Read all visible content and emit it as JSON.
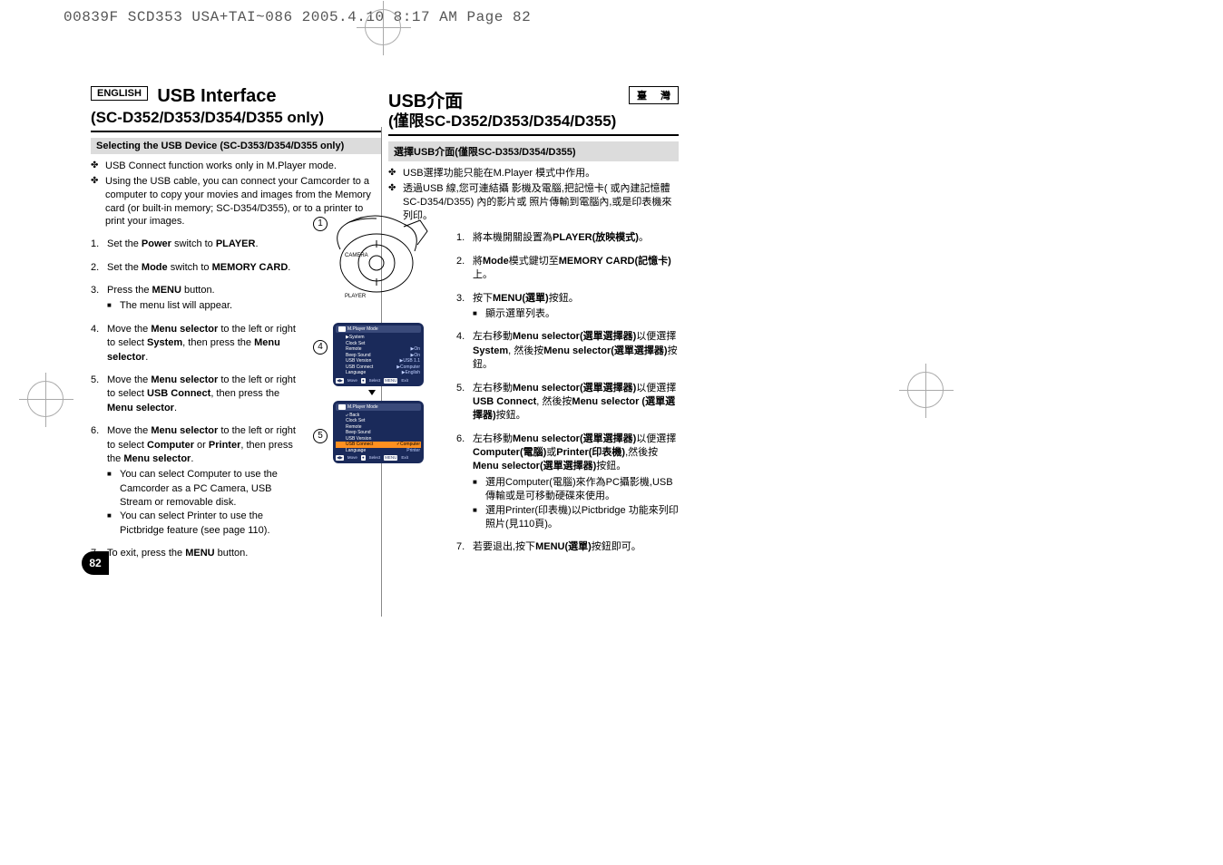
{
  "header_stamp": "00839F SCD353 USA+TAI~086  2005.4.10 8:17 AM  Page 82",
  "page_number": "82",
  "left": {
    "lang_badge": "ENGLISH",
    "title": "USB Interface",
    "subtitle": "(SC-D352/D353/D354/D355 only)",
    "section": "Selecting the USB Device (SC-D353/D354/D355 only)",
    "bullets": [
      "USB Connect function works only in M.Player mode.",
      "Using the USB cable, you can connect your Camcorder to a computer to copy your movies and images from the Memory card (or built-in memory; SC-D354/D355), or to a printer to print your images."
    ],
    "steps": [
      {
        "text": "Set the <b>Power</b> switch to <b>PLAYER</b>."
      },
      {
        "text": "Set the <b>Mode</b> switch to <b>MEMORY CARD</b>."
      },
      {
        "text": "Press the <b>MENU</b> button.",
        "sub": [
          "The menu list will appear."
        ]
      },
      {
        "text": "Move the <b>Menu selector</b> to the left or right to select <b>System</b>, then press the <b>Menu selector</b>."
      },
      {
        "text": "Move the <b>Menu selector</b> to the left or right to select <b>USB Connect</b>, then press the <b>Menu selector</b>."
      },
      {
        "text": "Move the <b>Menu selector</b> to the left or right to select <b>Computer</b> or <b>Printer</b>, then press the <b>Menu selector</b>.",
        "sub": [
          "You can select Computer to use the Camcorder as a PC Camera, USB Stream or removable disk.",
          "You can select Printer to use the Pictbridge feature  (see page 110)."
        ]
      },
      {
        "text": "To exit, press the <b>MENU</b> button."
      }
    ]
  },
  "right": {
    "lang_badge": "臺 灣",
    "title": "USB介面",
    "subtitle": "(僅限SC-D352/D353/D354/D355)",
    "section": "選擇USB介面(僅限SC-D353/D354/D355)",
    "bullets": [
      "USB選擇功能只能在M.Player 模式中作用。",
      "透過USB 線,您可連結攝 影機及電腦,把記憶卡( 或內建記憶體 SC-D354/D355) 內的影片或 照片傳輸到電腦內,或是印表機來列印。"
    ],
    "steps": [
      {
        "text": "將本機開關設置為<b>PLAYER(放映模式)</b>。"
      },
      {
        "text": "將<b>Mode</b>模式鍵切至<b>MEMORY CARD(記憶卡)</b>上。"
      },
      {
        "text": "按下<b>MENU(選單)</b>按鈕。",
        "sub": [
          "顯示選單列表。"
        ]
      },
      {
        "text": "左右移動<b>Menu selector(選單選擇器)</b>以便選擇 <b>System</b>, 然後按<b>Menu selector(選單選擇器)</b>按鈕。"
      },
      {
        "text": "左右移動<b>Menu selector(選單選擇器)</b>以便選擇 <b>USB Connect</b>, 然後按<b>Menu selector (選單選擇器)</b>按鈕。"
      },
      {
        "text": "左右移動<b>Menu selector(選單選擇器)</b>以便選擇 <b>Computer(電腦)</b>或<b>Printer(印表機)</b>,然後按 <b>Menu selector(選單選擇器)</b>按鈕。",
        "sub": [
          "選用Computer(電腦)來作為PC攝影機,USB傳輸或是可移動硬碟來使用。",
          "選用Printer(印表機)以Pictbridge 功能來列印照片(見110頁)。"
        ]
      },
      {
        "text": "若要退出,按下<b>MENU(選單)</b>按鈕即可。"
      }
    ]
  },
  "figures": {
    "numbers": [
      "1",
      "4",
      "5"
    ],
    "power_labels": {
      "camera": "CAMERA",
      "player": "PLAYER"
    },
    "menu4": {
      "title": "M.Player Mode",
      "back": "▶System",
      "rows": [
        {
          "label": "Clock Set",
          "val": ""
        },
        {
          "label": "Remote",
          "val": "▶On"
        },
        {
          "label": "Beep Sound",
          "val": "▶On"
        },
        {
          "label": "USB Version",
          "val": "▶USB 1.1"
        },
        {
          "label": "USB Connect",
          "val": "▶Computer"
        },
        {
          "label": "Language",
          "val": "▶English"
        }
      ],
      "footer": {
        "move": "Move",
        "select": "Select",
        "exit": "Exit",
        "menu_key": "MENU"
      }
    },
    "menu5": {
      "title": "M.Player Mode",
      "back": "⤶ Back",
      "rows": [
        {
          "label": "Clock Set",
          "val": ""
        },
        {
          "label": "Remote",
          "val": ""
        },
        {
          "label": "Beep Sound",
          "val": ""
        },
        {
          "label": "USB Version",
          "val": ""
        },
        {
          "label": "USB Connect",
          "val": "✓Computer",
          "hl": true
        },
        {
          "label": "Language",
          "val": "  Printer"
        }
      ],
      "footer": {
        "move": "Move",
        "select": "Select",
        "exit": "Exit",
        "menu_key": "MENU"
      }
    },
    "colors": {
      "menu_bg": "#1a2a5a",
      "menu_row_bg": "#3a4a7a",
      "highlight": "#ff9020",
      "value_text": "#c0d0ff"
    }
  }
}
